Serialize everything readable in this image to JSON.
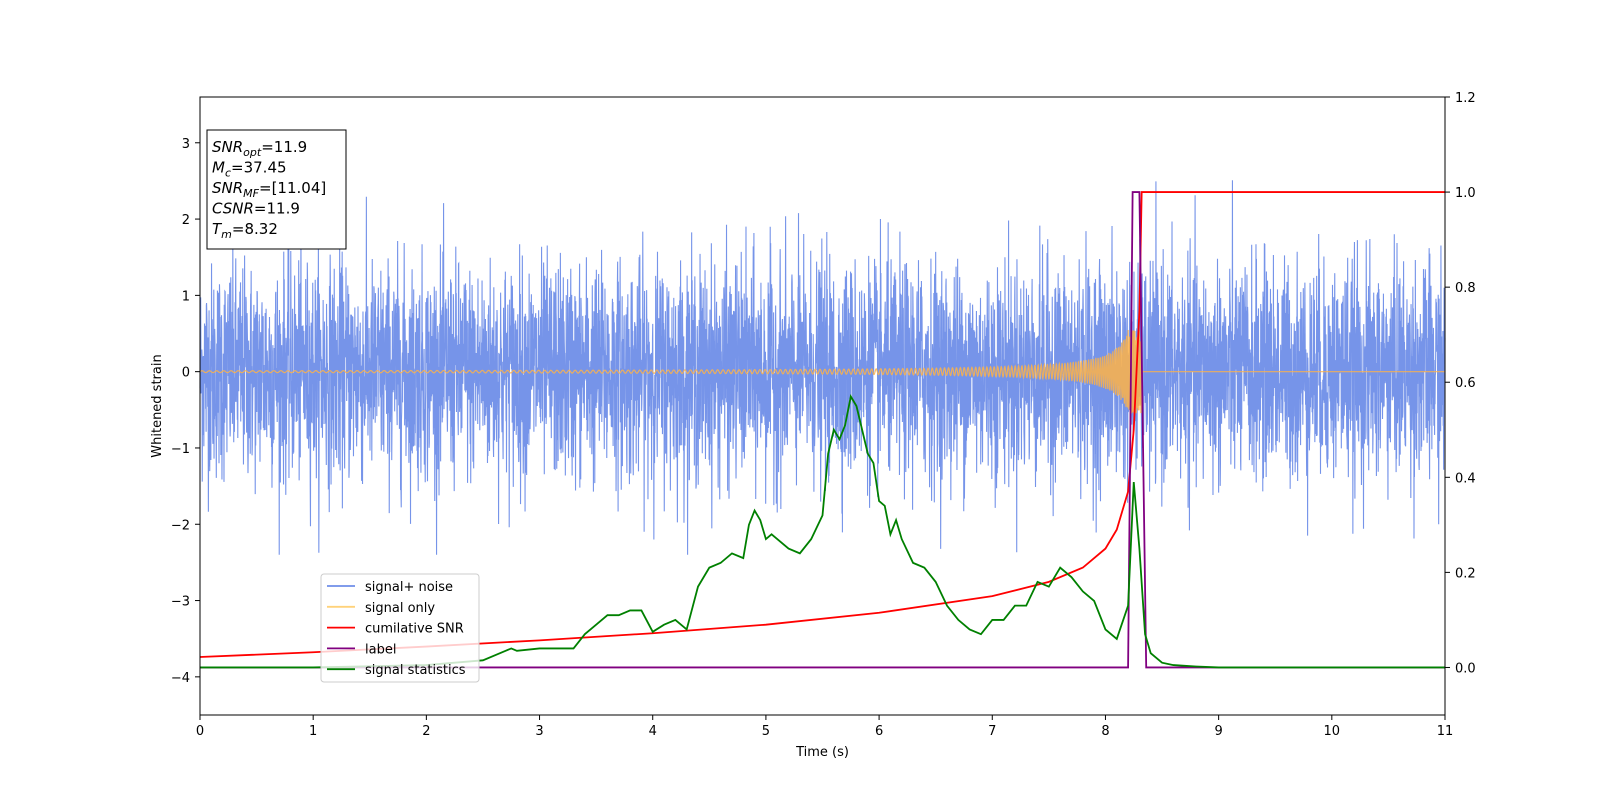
{
  "chart_data": {
    "type": "line",
    "xlabel": "Time (s)",
    "ylabel_left": "Whitened strain",
    "xlim": [
      0,
      11
    ],
    "ylim_left": [
      -4.5,
      3.6
    ],
    "ylim_right": [
      -0.1,
      1.2
    ],
    "xticks": [
      0,
      1,
      2,
      3,
      4,
      5,
      6,
      7,
      8,
      9,
      10,
      11
    ],
    "yticks_left": [
      -4,
      -3,
      -2,
      -1,
      0,
      1,
      2,
      3
    ],
    "yticks_right": [
      0.0,
      0.2,
      0.4,
      0.6,
      0.8,
      1.0,
      1.2
    ],
    "annotation": {
      "lines": [
        {
          "sym": "SNR",
          "sub": "opt",
          "value": "=11.9"
        },
        {
          "sym": "M",
          "sub": "c",
          "value": "=37.45"
        },
        {
          "sym": "SNR",
          "sub": "MF",
          "value": "=[11.04]"
        },
        {
          "sym": "CSNR",
          "sub": "",
          "value": "=11.9"
        },
        {
          "sym": "T",
          "sub": "m",
          "value": "=8.32"
        }
      ]
    },
    "legend": {
      "placement": "lower-left",
      "entries": [
        {
          "label": "signal+ noise",
          "color": "#6f8ee8"
        },
        {
          "label": "signal only",
          "color": "#ffd27a"
        },
        {
          "label": "cumilative SNR",
          "color": "#ff0000"
        },
        {
          "label": "label",
          "color": "#800080"
        },
        {
          "label": "signal statistics",
          "color": "#008000"
        }
      ]
    },
    "series": [
      {
        "name": "signal+ noise",
        "axis": "left",
        "color": "#6f8ee8",
        "style": "noise",
        "t_range": [
          0,
          11
        ],
        "amplitude_sigma": 0.7,
        "peak_range": [
          -2.4,
          2.55
        ]
      },
      {
        "name": "signal only",
        "axis": "left",
        "color": "#ffb347",
        "style": "chirp",
        "t_range": [
          0,
          8.32
        ],
        "max_amplitude": 0.55
      },
      {
        "name": "cumilative SNR",
        "axis": "right",
        "x": [
          0,
          1,
          2,
          3,
          4,
          5,
          6,
          7,
          7.5,
          7.8,
          8.0,
          8.1,
          8.2,
          8.25,
          8.3,
          8.32,
          8.33,
          9,
          10,
          11
        ],
        "y": [
          0.022,
          0.032,
          0.044,
          0.057,
          0.072,
          0.09,
          0.115,
          0.15,
          0.18,
          0.21,
          0.25,
          0.29,
          0.37,
          0.5,
          0.75,
          1.0,
          1.0,
          1.0,
          1.0,
          1.0
        ]
      },
      {
        "name": "label",
        "axis": "right",
        "x": [
          0,
          8.2,
          8.24,
          8.3,
          8.36,
          9,
          10,
          11
        ],
        "y": [
          0,
          0,
          1,
          1,
          0,
          0,
          0,
          0
        ]
      },
      {
        "name": "signal statistics",
        "axis": "right",
        "x": [
          0,
          1,
          2,
          2.5,
          2.7,
          2.75,
          2.8,
          3,
          3.1,
          3.2,
          3.3,
          3.4,
          3.5,
          3.6,
          3.7,
          3.8,
          3.9,
          4.0,
          4.1,
          4.2,
          4.3,
          4.4,
          4.5,
          4.6,
          4.7,
          4.8,
          4.85,
          4.9,
          4.95,
          5.0,
          5.05,
          5.1,
          5.2,
          5.3,
          5.4,
          5.5,
          5.55,
          5.6,
          5.65,
          5.7,
          5.75,
          5.8,
          5.85,
          5.9,
          5.95,
          6.0,
          6.05,
          6.1,
          6.15,
          6.2,
          6.3,
          6.4,
          6.5,
          6.6,
          6.7,
          6.8,
          6.9,
          7.0,
          7.1,
          7.2,
          7.3,
          7.4,
          7.5,
          7.6,
          7.7,
          7.8,
          7.9,
          8.0,
          8.1,
          8.2,
          8.25,
          8.3,
          8.35,
          8.4,
          8.5,
          8.6,
          8.8,
          9,
          10,
          11
        ],
        "y": [
          0.0,
          0.0,
          0.005,
          0.015,
          0.035,
          0.04,
          0.035,
          0.04,
          0.04,
          0.04,
          0.04,
          0.07,
          0.09,
          0.11,
          0.11,
          0.12,
          0.12,
          0.075,
          0.09,
          0.1,
          0.08,
          0.17,
          0.21,
          0.22,
          0.24,
          0.23,
          0.3,
          0.33,
          0.31,
          0.27,
          0.28,
          0.27,
          0.25,
          0.24,
          0.27,
          0.32,
          0.45,
          0.5,
          0.48,
          0.51,
          0.57,
          0.55,
          0.5,
          0.45,
          0.43,
          0.35,
          0.34,
          0.28,
          0.31,
          0.27,
          0.22,
          0.21,
          0.18,
          0.13,
          0.1,
          0.08,
          0.07,
          0.1,
          0.1,
          0.13,
          0.13,
          0.18,
          0.17,
          0.21,
          0.19,
          0.16,
          0.14,
          0.08,
          0.06,
          0.13,
          0.39,
          0.25,
          0.07,
          0.03,
          0.01,
          0.005,
          0.002,
          0.0,
          0.0,
          0.0
        ]
      }
    ]
  }
}
